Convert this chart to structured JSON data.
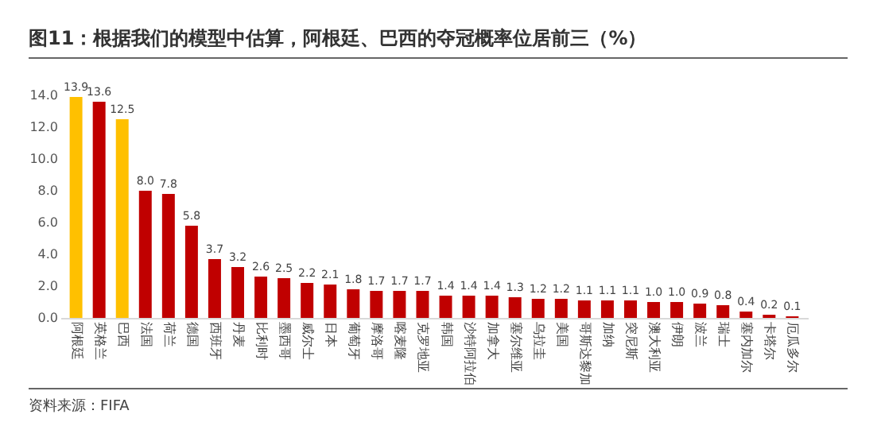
{
  "chart_data": {
    "type": "bar",
    "title": "图11：根据我们的模型中估算，阿根廷、巴西的夺冠概率位居前三（%）",
    "categories": [
      "阿根廷",
      "英格兰",
      "巴西",
      "法国",
      "荷兰",
      "德国",
      "西班牙",
      "丹麦",
      "比利时",
      "墨西哥",
      "威尔士",
      "日本",
      "葡萄牙",
      "摩洛哥",
      "喀麦隆",
      "克罗地亚",
      "韩国",
      "沙特阿拉伯",
      "加拿大",
      "塞尔维亚",
      "乌拉圭",
      "美国",
      "哥斯达黎加",
      "加纳",
      "突尼斯",
      "澳大利亚",
      "伊朗",
      "波兰",
      "瑞士",
      "塞内加尔",
      "卡塔尔",
      "厄瓜多尔"
    ],
    "values": [
      13.9,
      13.6,
      12.5,
      8.0,
      7.8,
      5.8,
      3.7,
      3.2,
      2.6,
      2.5,
      2.2,
      2.1,
      1.8,
      1.7,
      1.7,
      1.7,
      1.4,
      1.4,
      1.4,
      1.3,
      1.2,
      1.2,
      1.1,
      1.1,
      1.1,
      1.0,
      1.0,
      0.9,
      0.8,
      0.4,
      0.2,
      0.1
    ],
    "colors": [
      "#ffc000",
      "#c00000",
      "#ffc000",
      "#c00000",
      "#c00000",
      "#c00000",
      "#c00000",
      "#c00000",
      "#c00000",
      "#c00000",
      "#c00000",
      "#c00000",
      "#c00000",
      "#c00000",
      "#c00000",
      "#c00000",
      "#c00000",
      "#c00000",
      "#c00000",
      "#c00000",
      "#c00000",
      "#c00000",
      "#c00000",
      "#c00000",
      "#c00000",
      "#c00000",
      "#c00000",
      "#c00000",
      "#c00000",
      "#c00000",
      "#c00000",
      "#c00000"
    ],
    "ylim": [
      0,
      14
    ],
    "yticks": [
      {
        "value": 0,
        "label": "0.0"
      },
      {
        "value": 2,
        "label": "2.0"
      },
      {
        "value": 4,
        "label": "4.0"
      },
      {
        "value": 6,
        "label": "6.0"
      },
      {
        "value": 8,
        "label": "8.0"
      },
      {
        "value": 10,
        "label": "10.0"
      },
      {
        "value": 12,
        "label": "12.0"
      },
      {
        "value": 14,
        "label": "14.0"
      }
    ],
    "value_labels": [
      "13.9",
      "13.6",
      "12.5",
      "8.0",
      "7.8",
      "5.8",
      "3.7",
      "3.2",
      "2.6",
      "2.5",
      "2.2",
      "2.1",
      "1.8",
      "1.7",
      "1.7",
      "1.7",
      "1.4",
      "1.4",
      "1.4",
      "1.3",
      "1.2",
      "1.2",
      "1.1",
      "1.1",
      "1.1",
      "1.0",
      "1.0",
      "0.9",
      "0.8",
      "0.4",
      "0.2",
      "0.1"
    ],
    "grid": false,
    "annotations": [
      "资料来源：FIFA"
    ]
  }
}
